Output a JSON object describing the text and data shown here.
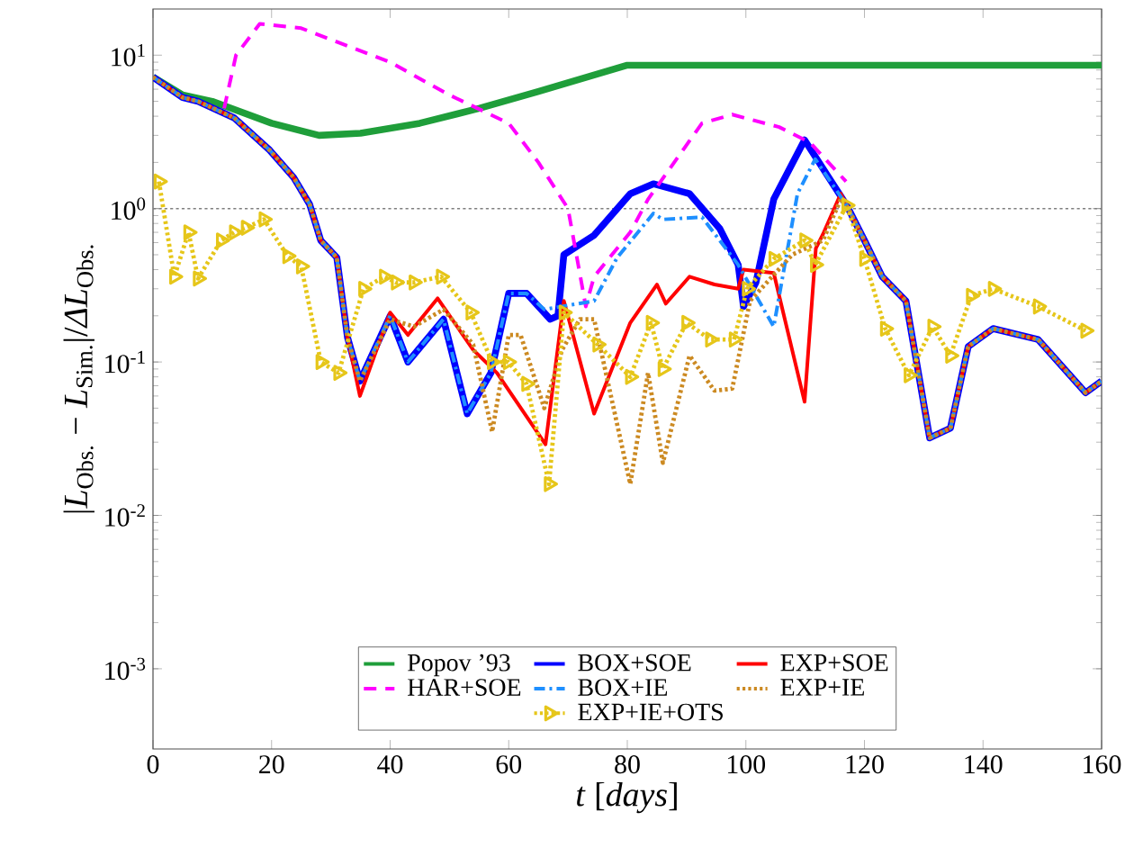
{
  "chart_data": {
    "type": "line",
    "xlabel": "*t* [*days*]",
    "ylabel": "|*L*$_{Obs.}$ − *L*$_{Sim.}$|/*ΔL*$_{Obs.}$",
    "xlim": [
      0,
      160
    ],
    "xticks": [
      0,
      20,
      40,
      60,
      80,
      100,
      120,
      140,
      160
    ],
    "ylim": [
      0.0003,
      20
    ],
    "log": "y",
    "yticks": [
      {
        "value": 0.001,
        "label": "10$^{-3}$"
      },
      {
        "value": 0.01,
        "label": "10$^{-2}$"
      },
      {
        "value": 0.1,
        "label": "10$^{-1}$"
      },
      {
        "value": 1,
        "label": "10$^{0}$"
      },
      {
        "value": 10,
        "label": "10$^{1}$"
      }
    ],
    "grid": false,
    "legend": "bottom",
    "ref_lines": [
      {
        "axis": "y",
        "value": 1,
        "color": "#808080",
        "line_style": "dotted"
      }
    ],
    "series": [
      {
        "name": "Popov ’93",
        "color": "#1f9e3a",
        "line_style": "solid",
        "marker": "none",
        "x": [
          0,
          5,
          10,
          20,
          28,
          35,
          45,
          55,
          65,
          80,
          160
        ],
        "values": [
          7.2,
          5.5,
          5.0,
          3.6,
          3.0,
          3.1,
          3.6,
          4.5,
          5.8,
          8.6,
          8.6
        ]
      },
      {
        "name": "BOX+SOE",
        "color": "#0000ff",
        "line_style": "solid",
        "marker": "none",
        "x": [
          0,
          5,
          7.6,
          13.7,
          19.7,
          23.7,
          26.4,
          28.3,
          31,
          32.8,
          34.9,
          40,
          43,
          49,
          53,
          57,
          60,
          63,
          67,
          68.3,
          69.3,
          74.4,
          80.5,
          84.4,
          90.5,
          95.6,
          98.7,
          99.6,
          101.7,
          104.7,
          109.9,
          117,
          120,
          123,
          127,
          131,
          134.5,
          137.5,
          141.7,
          149.3,
          157.3,
          160
        ],
        "values": [
          7.2,
          5.3,
          5.0,
          3.9,
          2.4,
          1.6,
          1.07,
          0.62,
          0.48,
          0.145,
          0.075,
          0.2,
          0.1,
          0.19,
          0.046,
          0.085,
          0.28,
          0.28,
          0.19,
          0.2,
          0.5,
          0.67,
          1.25,
          1.45,
          1.25,
          0.74,
          0.43,
          0.23,
          0.33,
          1.15,
          2.8,
          1.05,
          0.62,
          0.36,
          0.25,
          0.032,
          0.037,
          0.126,
          0.165,
          0.14,
          0.063,
          0.075
        ]
      },
      {
        "name": "EXP+SOE",
        "color": "#ff0000",
        "line_style": "solid",
        "marker": "none",
        "x": [
          0,
          5,
          7.6,
          13.7,
          19.7,
          23.7,
          26.4,
          28.3,
          31,
          32.8,
          34.9,
          40,
          43,
          48,
          54,
          58,
          66.2,
          69.3,
          74.4,
          80.5,
          85,
          86.5,
          90.5,
          94.7,
          98.7,
          99.6,
          104.7,
          109.9,
          111.8,
          113,
          116,
          117,
          120,
          123,
          127,
          131,
          134.5,
          137.5,
          141.7,
          149.3,
          157.3,
          160
        ],
        "values": [
          7.2,
          5.3,
          5.0,
          3.9,
          2.4,
          1.6,
          1.07,
          0.62,
          0.48,
          0.145,
          0.06,
          0.21,
          0.15,
          0.26,
          0.12,
          0.085,
          0.029,
          0.25,
          0.046,
          0.18,
          0.32,
          0.24,
          0.36,
          0.32,
          0.3,
          0.4,
          0.38,
          0.055,
          0.55,
          0.68,
          1.25,
          1.05,
          0.62,
          0.36,
          0.25,
          0.032,
          0.037,
          0.126,
          0.165,
          0.14,
          0.063,
          0.075
        ]
      },
      {
        "name": "HAR+SOE",
        "color": "#ff00ff",
        "line_style": "dashed",
        "marker": "none",
        "x": [
          12,
          14,
          18,
          25,
          40,
          50,
          60,
          65,
          70,
          73,
          74.4,
          80.5,
          83.5,
          92.6,
          97.7,
          105.6,
          110.8,
          116.9
        ],
        "values": [
          4.5,
          10,
          16,
          15,
          9,
          5.5,
          3.6,
          2.0,
          1.0,
          0.23,
          0.36,
          0.7,
          1.15,
          3.6,
          4.1,
          3.4,
          2.7,
          1.5
        ]
      },
      {
        "name": "BOX+IE",
        "color": "#1e8fff",
        "line_style": "dashdot",
        "marker": "none",
        "x": [
          0,
          5,
          7.6,
          13.7,
          19.7,
          23.7,
          26.4,
          28.3,
          31,
          32.8,
          34.9,
          40,
          43,
          49,
          53,
          57,
          60,
          63,
          66,
          74.4,
          78.3,
          84.4,
          86,
          92.6,
          98.7,
          104.7,
          108.7,
          111.7,
          117,
          120,
          123,
          127,
          131,
          134.5,
          137.5,
          141.7,
          149.3,
          157.3,
          160
        ],
        "values": [
          7.2,
          5.3,
          5.0,
          3.9,
          2.4,
          1.6,
          1.07,
          0.62,
          0.48,
          0.145,
          0.075,
          0.2,
          0.1,
          0.19,
          0.046,
          0.085,
          0.28,
          0.28,
          0.22,
          0.25,
          0.48,
          0.93,
          0.85,
          0.88,
          0.43,
          0.17,
          1.25,
          2.1,
          1.05,
          0.62,
          0.36,
          0.25,
          0.032,
          0.037,
          0.126,
          0.165,
          0.14,
          0.063,
          0.075
        ]
      },
      {
        "name": "EXP+IE",
        "color": "#cc8a22",
        "line_style": "dotted",
        "marker": "none",
        "x": [
          0,
          5,
          7.6,
          13.7,
          19.7,
          23.7,
          26.4,
          28.3,
          31,
          32.8,
          34.9,
          40,
          44,
          49,
          54,
          57.2,
          60,
          62,
          66,
          69,
          72,
          74.4,
          80.5,
          83.5,
          86,
          90.5,
          94.7,
          97.7,
          100.7,
          107.8,
          113,
          116,
          117,
          120,
          123,
          127,
          131,
          134.5,
          137.5,
          141.7,
          149.3,
          157.3,
          160
        ],
        "values": [
          7.2,
          5.3,
          5.0,
          3.9,
          2.4,
          1.6,
          1.07,
          0.62,
          0.48,
          0.145,
          0.075,
          0.19,
          0.17,
          0.22,
          0.13,
          0.035,
          0.15,
          0.15,
          0.05,
          0.12,
          0.19,
          0.19,
          0.016,
          0.085,
          0.022,
          0.11,
          0.065,
          0.067,
          0.25,
          0.5,
          0.62,
          1.15,
          1.05,
          0.62,
          0.36,
          0.25,
          0.032,
          0.037,
          0.126,
          0.165,
          0.14,
          0.063,
          0.075
        ]
      },
      {
        "name": "EXP+IE+OTS",
        "color": "#e6c619",
        "line_style": "dotted",
        "marker": "triangle",
        "x": [
          1,
          3.6,
          6,
          7.6,
          11.5,
          13.7,
          15.7,
          18.7,
          22.7,
          25,
          28.3,
          31.3,
          35.5,
          39,
          41,
          44,
          48.6,
          53.6,
          57.2,
          59.9,
          63,
          66.8,
          69.3,
          75,
          80.5,
          84,
          86,
          90,
          94,
          98,
          100.2,
          104.7,
          109.9,
          111.7,
          117,
          120,
          123.5,
          127.5,
          131.5,
          134.5,
          138,
          141.7,
          149.3,
          157.3
        ],
        "values": [
          1.5,
          0.36,
          0.7,
          0.35,
          0.62,
          0.7,
          0.75,
          0.85,
          0.49,
          0.42,
          0.1,
          0.085,
          0.3,
          0.36,
          0.33,
          0.33,
          0.36,
          0.21,
          0.1,
          0.1,
          0.072,
          0.016,
          0.21,
          0.13,
          0.08,
          0.18,
          0.09,
          0.18,
          0.14,
          0.14,
          0.3,
          0.47,
          0.62,
          0.43,
          1.05,
          0.47,
          0.165,
          0.082,
          0.17,
          0.11,
          0.27,
          0.3,
          0.23,
          0.16
        ]
      }
    ]
  }
}
